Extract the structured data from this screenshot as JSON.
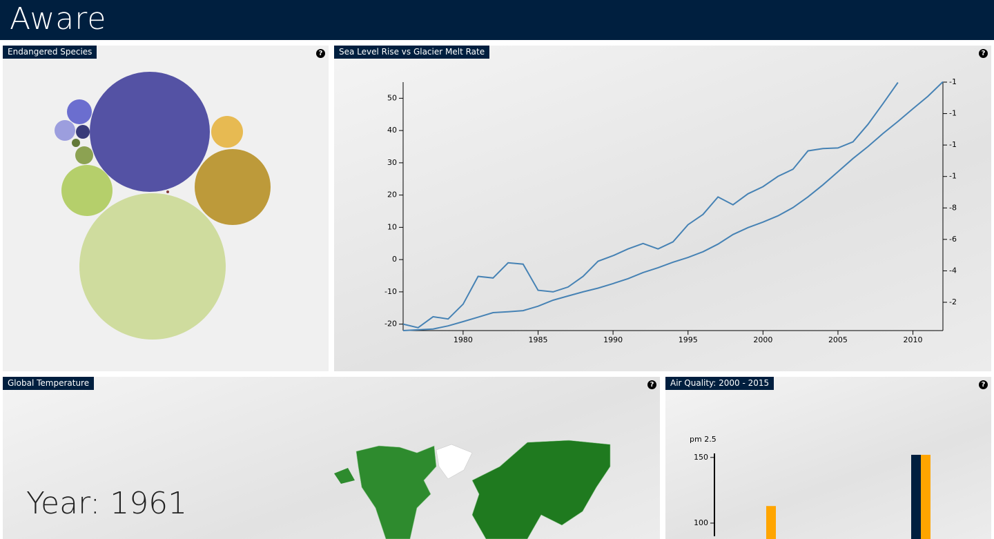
{
  "header": {
    "title": "Aware"
  },
  "help_icon": "?",
  "chart_data": [
    {
      "type": "bubble",
      "title": "Endangered Species",
      "values": [
        7569,
        11236,
        3025,
        1369,
        529,
        324,
        225,
        100,
        169,
        36,
        4
      ],
      "colors": [
        "#5452a4",
        "#cfdc9e",
        "#bd9a3a",
        "#b5cf6b",
        "#e7ba52",
        "#6b6ecf",
        "#9c9ede",
        "#393b79",
        "#8ca252",
        "#637939",
        "#843c39"
      ]
    },
    {
      "type": "line",
      "title": "Sea Level Rise vs Glacier Melt Rate",
      "x": [
        1976,
        1977,
        1978,
        1979,
        1980,
        1981,
        1982,
        1983,
        1984,
        1985,
        1986,
        1987,
        1988,
        1989,
        1990,
        1991,
        1992,
        1993,
        1994,
        1995,
        1996,
        1997,
        1998,
        1999,
        2000,
        2001,
        2002,
        2003,
        2004,
        2005,
        2006,
        2007,
        2008,
        2009,
        2010,
        2011,
        2012
      ],
      "xlim": [
        1976,
        2012
      ],
      "xticks": [
        1980,
        1985,
        1990,
        1995,
        2000,
        2005,
        2010
      ],
      "ylim": [
        -22,
        55
      ],
      "yticks": [
        -20,
        -10,
        0,
        10,
        20,
        30,
        40,
        50
      ],
      "y2lim": [
        -0.2,
        -16
      ],
      "y2ticks": [
        -2,
        -4,
        -6,
        -8,
        {
          "value": -10,
          "label": "-1"
        },
        {
          "value": -12,
          "label": "-1"
        },
        {
          "value": -14,
          "label": "-1"
        },
        {
          "value": -16,
          "label": "-1"
        }
      ],
      "series": [
        {
          "color": "#4682b4",
          "values": [
            -20,
            -21.1,
            -17.7,
            -18.4,
            -13.8,
            -5.2,
            -5.7,
            -1,
            -1.4,
            -9.5,
            -10,
            -8.5,
            -5.2,
            -0.5,
            1.2,
            3.3,
            5,
            3.3,
            5.5,
            10.8,
            14,
            19.4,
            17,
            20.4,
            22.6,
            25.8,
            28,
            33.7,
            34.4,
            34.6,
            36.5,
            41.9,
            48.3,
            54.9,
            null,
            null,
            null
          ]
        },
        {
          "color": "#4682b4",
          "axis": "y2",
          "values": [
            -0.2,
            -0.25,
            -0.3,
            -0.5,
            -0.77,
            -1.05,
            -1.34,
            -1.4,
            -1.47,
            -1.75,
            -2.13,
            -2.4,
            -2.66,
            -2.9,
            -3.19,
            -3.5,
            -3.89,
            -4.2,
            -4.55,
            -4.85,
            -5.21,
            -5.7,
            -6.31,
            -6.75,
            -7.1,
            -7.5,
            -8.02,
            -8.7,
            -9.47,
            -10.3,
            -11.14,
            -11.9,
            -12.73,
            -13.5,
            -14.31,
            -15.1,
            -16.02
          ]
        }
      ]
    },
    {
      "type": "bar",
      "title": "Air Quality: 2000 - 2015",
      "ylabel": "pm 2.5",
      "categories": [
        null,
        null,
        null,
        null,
        null,
        null,
        null,
        null,
        null,
        null,
        null,
        null,
        null,
        null
      ],
      "ylim": [
        90,
        152
      ],
      "yticks": [
        100,
        150
      ],
      "series": [
        {
          "color": "#001f3f",
          "values": [
            null,
            null,
            null,
            null,
            null,
            null,
            null,
            null,
            null,
            null,
            152,
            null,
            null,
            null
          ]
        },
        {
          "color": "#ffa500",
          "values": [
            null,
            null,
            113,
            null,
            null,
            null,
            null,
            null,
            null,
            null,
            152,
            null,
            null,
            null
          ]
        }
      ]
    }
  ],
  "map_panel": {
    "title": "Global Temperature",
    "year_label": "Year: 1961"
  }
}
